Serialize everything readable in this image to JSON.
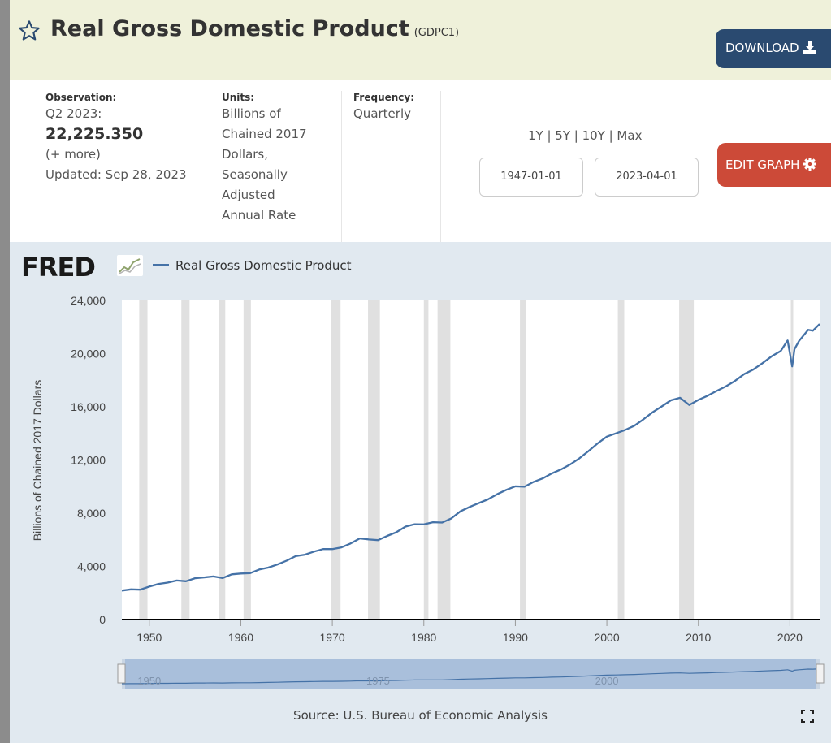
{
  "header": {
    "title": "Real Gross Domestic Product",
    "series_id": "(GDPC1)",
    "download_label": "DOWNLOAD"
  },
  "meta": {
    "observation_label": "Observation:",
    "observation_period": "Q2 2023:",
    "observation_value": "22,225.350",
    "more": "(+ more)",
    "updated": "Updated: Sep 28, 2023",
    "units_label": "Units:",
    "units_lines": [
      "Billions of",
      "Chained 2017",
      "Dollars,",
      "Seasonally",
      "Adjusted",
      "Annual Rate"
    ],
    "frequency_label": "Frequency:",
    "frequency": "Quarterly",
    "range_links": "1Y | 5Y | 10Y | Max",
    "start_date": "1947-01-01",
    "end_date": "2023-04-01",
    "edit_label": "EDIT GRAPH"
  },
  "chart": {
    "logo": "FRED",
    "source": "Source: U.S. Bureau of Economic Analysis"
  },
  "colors": {
    "series": "#4572a7",
    "recession": "#e0e0e0",
    "download_bg": "#2a4a70",
    "edit_bg": "#cc4a38"
  },
  "chart_data": {
    "type": "line",
    "series": [
      {
        "name": "Real Gross Domestic Product",
        "x": [
          1947,
          1948,
          1949,
          1950,
          1951,
          1952,
          1953,
          1954,
          1955,
          1956,
          1957,
          1958,
          1959,
          1960,
          1961,
          1962,
          1963,
          1964,
          1965,
          1966,
          1967,
          1968,
          1969,
          1970,
          1971,
          1972,
          1973,
          1974,
          1975,
          1976,
          1977,
          1978,
          1979,
          1980,
          1981,
          1982,
          1983,
          1984,
          1985,
          1986,
          1987,
          1988,
          1989,
          1990,
          1991,
          1992,
          1993,
          1994,
          1995,
          1996,
          1997,
          1998,
          1999,
          2000,
          2001,
          2002,
          2003,
          2004,
          2005,
          2006,
          2007,
          2008,
          2009,
          2010,
          2011,
          2012,
          2013,
          2014,
          2015,
          2016,
          2017,
          2018,
          2019,
          2019.75,
          2020.25,
          2020.5,
          2021,
          2022,
          2022.5,
          2023.25
        ],
        "y": [
          2180,
          2270,
          2250,
          2480,
          2680,
          2780,
          2940,
          2880,
          3110,
          3170,
          3240,
          3120,
          3400,
          3460,
          3490,
          3760,
          3910,
          4140,
          4430,
          4770,
          4880,
          5110,
          5300,
          5300,
          5430,
          5720,
          6100,
          6020,
          5970,
          6290,
          6570,
          6990,
          7170,
          7160,
          7320,
          7300,
          7610,
          8140,
          8470,
          8760,
          9040,
          9420,
          9750,
          10020,
          9990,
          10360,
          10620,
          11000,
          11290,
          11670,
          12130,
          12670,
          13250,
          13760,
          14000,
          14260,
          14580,
          15060,
          15590,
          16030,
          16490,
          16680,
          16140,
          16520,
          16830,
          17200,
          17530,
          17950,
          18460,
          18800,
          19280,
          19800,
          20200,
          20990,
          19040,
          20330,
          20960,
          21790,
          21720,
          22225
        ]
      }
    ],
    "recessions": [
      [
        1948.9,
        1949.8
      ],
      [
        1953.5,
        1954.4
      ],
      [
        1957.6,
        1958.3
      ],
      [
        1960.3,
        1961.1
      ],
      [
        1969.9,
        1970.9
      ],
      [
        1973.9,
        1975.2
      ],
      [
        1980.0,
        1980.5
      ],
      [
        1981.5,
        1982.9
      ],
      [
        1990.5,
        1991.2
      ],
      [
        2001.2,
        2001.9
      ],
      [
        2007.9,
        2009.5
      ],
      [
        2020.1,
        2020.3
      ]
    ],
    "title": "",
    "xlabel": "",
    "ylabel": "Billions of Chained 2017 Dollars",
    "xlim": [
      1947,
      2023.25
    ],
    "ylim": [
      0,
      24000
    ],
    "yticks": [
      0,
      4000,
      8000,
      12000,
      16000,
      20000,
      24000
    ],
    "ytick_labels": [
      "0",
      "4,000",
      "8,000",
      "12,000",
      "16,000",
      "20,000",
      "24,000"
    ],
    "xticks": [
      1950,
      1960,
      1970,
      1980,
      1990,
      2000,
      2010,
      2020
    ],
    "xtick_labels": [
      "1950",
      "1960",
      "1970",
      "1980",
      "1990",
      "2000",
      "2010",
      "2020"
    ],
    "navigator_labels": [
      "1950",
      "1975",
      "2000"
    ],
    "grid": false,
    "legend": "top-left"
  }
}
